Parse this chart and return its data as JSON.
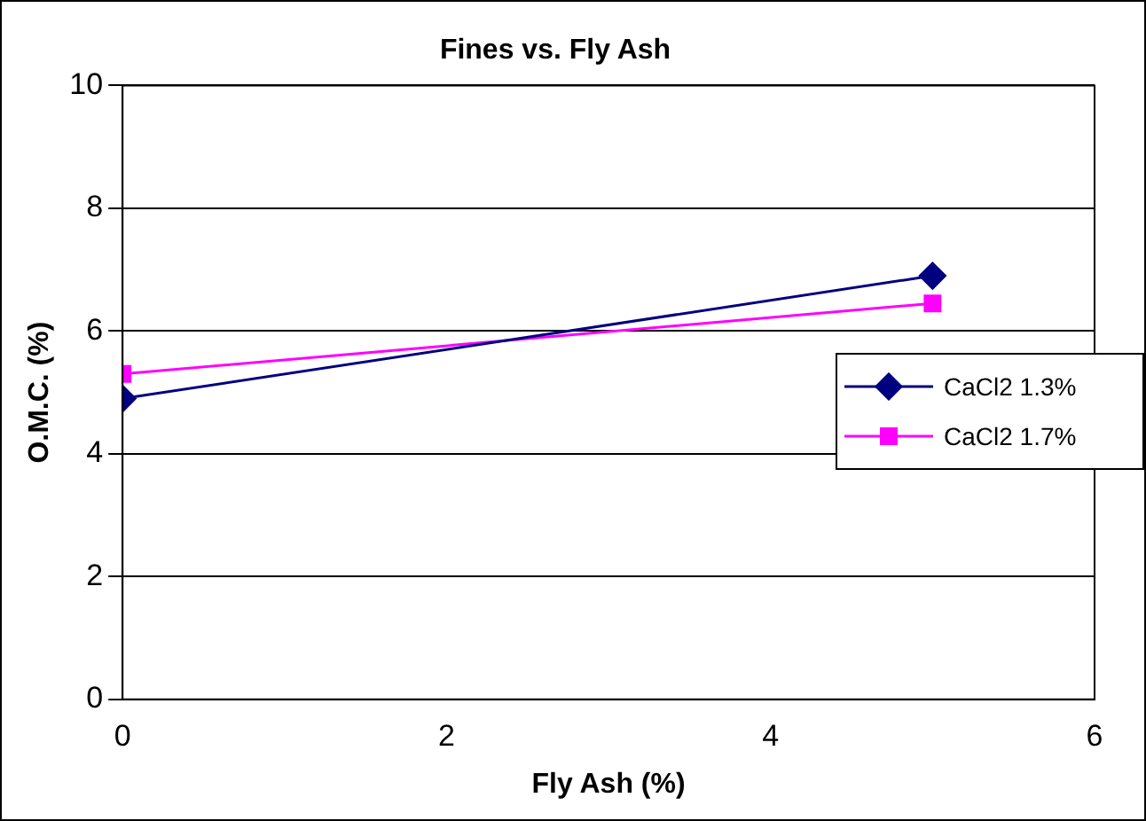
{
  "chart_data": {
    "type": "line",
    "title": "Fines vs. Fly Ash",
    "xlabel": "Fly Ash (%)",
    "ylabel": "O.M.C. (%)",
    "xlim": [
      0,
      6
    ],
    "xticks": [
      0,
      2,
      4,
      6
    ],
    "ylim": [
      0,
      10
    ],
    "yticks": [
      0,
      2,
      4,
      6,
      8,
      10
    ],
    "grid": "y",
    "legend": "right",
    "line_style": "solid",
    "x": [
      0,
      5
    ],
    "series": [
      {
        "name": "CaCl2 1.3%",
        "color": "#000080",
        "marker": "diamond",
        "values": [
          4.9,
          6.9
        ]
      },
      {
        "name": "CaCl2 1.7%",
        "color": "#ff00ff",
        "marker": "square",
        "values": [
          5.3,
          6.45
        ]
      }
    ]
  }
}
